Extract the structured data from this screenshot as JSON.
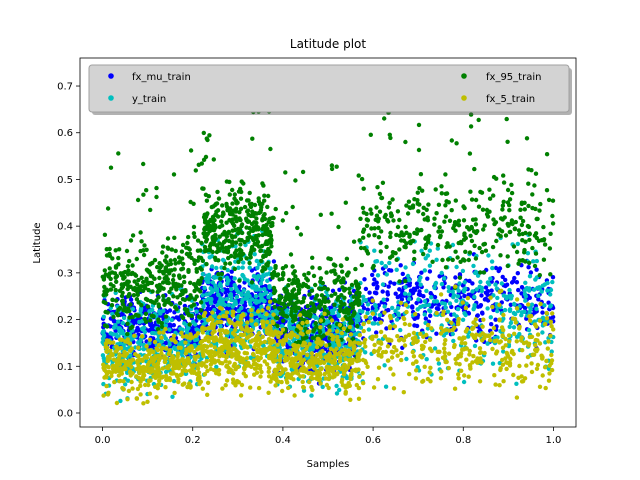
{
  "chart_data": {
    "type": "scatter",
    "title": "Latitude plot",
    "xlabel": "Samples",
    "ylabel": "Latitude",
    "xlim": [
      -0.05,
      1.05
    ],
    "ylim": [
      -0.03,
      0.76
    ],
    "x_ticks": [
      0.0,
      0.2,
      0.4,
      0.6,
      0.8,
      1.0
    ],
    "x_tick_labels": [
      "0.0",
      "0.2",
      "0.4",
      "0.6",
      "0.8",
      "1.0"
    ],
    "y_ticks": [
      0.0,
      0.1,
      0.2,
      0.3,
      0.4,
      0.5,
      0.6,
      0.7
    ],
    "y_tick_labels": [
      "0.0",
      "0.1",
      "0.2",
      "0.3",
      "0.4",
      "0.5",
      "0.6",
      "0.7"
    ],
    "grid": false,
    "legend": {
      "placement": "top",
      "columns": 2,
      "entries": [
        "fx_mu_train",
        "y_train",
        "fx_95_train",
        "fx_5_train"
      ]
    },
    "segments": [
      {
        "x": [
          0.0,
          0.22
        ],
        "y_train": [
          0.01,
          0.28
        ],
        "fx_mu": [
          0.08,
          0.28
        ],
        "fx_95": [
          0.15,
          0.42
        ],
        "fx_5": [
          0.01,
          0.2
        ]
      },
      {
        "x": [
          0.22,
          0.38
        ],
        "y_train": [
          0.05,
          0.41
        ],
        "fx_mu": [
          0.12,
          0.34
        ],
        "fx_95": [
          0.25,
          0.52
        ],
        "fx_5": [
          0.02,
          0.26
        ]
      },
      {
        "x": [
          0.38,
          0.57
        ],
        "y_train": [
          0.01,
          0.3
        ],
        "fx_mu": [
          0.05,
          0.3
        ],
        "fx_95": [
          0.1,
          0.38
        ],
        "fx_5": [
          0.01,
          0.22
        ]
      },
      {
        "x": [
          0.57,
          1.0
        ],
        "y_train": [
          0.03,
          0.42
        ],
        "fx_mu": [
          0.12,
          0.36
        ],
        "fx_95": [
          0.25,
          0.55
        ],
        "fx_5": [
          0.01,
          0.28
        ]
      }
    ],
    "series": [
      {
        "name": "fx_mu_train",
        "color": "#0000ff",
        "x_range": [
          0.0,
          1.0
        ],
        "y_range": [
          0.05,
          0.39
        ],
        "count": 1400
      },
      {
        "name": "y_train",
        "color": "#00bfbf",
        "x_range": [
          0.0,
          1.0
        ],
        "y_range": [
          0.0,
          0.43
        ],
        "count": 1400
      },
      {
        "name": "fx_95_train",
        "color": "#008000",
        "x_range": [
          0.0,
          1.0
        ],
        "y_range": [
          0.1,
          0.72
        ],
        "count": 1400
      },
      {
        "name": "fx_5_train",
        "color": "#bfbf00",
        "x_range": [
          0.0,
          1.0
        ],
        "y_range": [
          0.0,
          0.3
        ],
        "count": 1400
      }
    ]
  }
}
